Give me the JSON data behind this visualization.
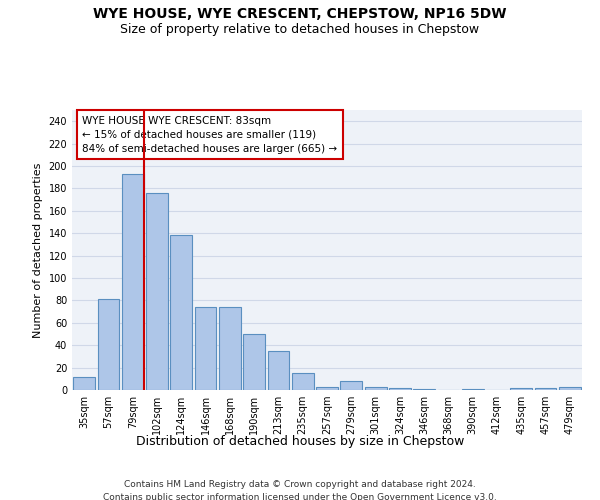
{
  "title": "WYE HOUSE, WYE CRESCENT, CHEPSTOW, NP16 5DW",
  "subtitle": "Size of property relative to detached houses in Chepstow",
  "xlabel": "Distribution of detached houses by size in Chepstow",
  "ylabel": "Number of detached properties",
  "categories": [
    "35sqm",
    "57sqm",
    "79sqm",
    "102sqm",
    "124sqm",
    "146sqm",
    "168sqm",
    "190sqm",
    "213sqm",
    "235sqm",
    "257sqm",
    "279sqm",
    "301sqm",
    "324sqm",
    "346sqm",
    "368sqm",
    "390sqm",
    "412sqm",
    "435sqm",
    "457sqm",
    "479sqm"
  ],
  "values": [
    12,
    81,
    193,
    176,
    138,
    74,
    74,
    50,
    35,
    15,
    3,
    8,
    3,
    2,
    1,
    0,
    1,
    0,
    2,
    2,
    3
  ],
  "bar_color": "#aec6e8",
  "bar_edge_color": "#5a8fc0",
  "annotation_line1": "WYE HOUSE WYE CRESCENT: 83sqm",
  "annotation_line2": "← 15% of detached houses are smaller (119)",
  "annotation_line3": "84% of semi-detached houses are larger (665) →",
  "annotation_box_color": "#ffffff",
  "annotation_box_edge_color": "#cc0000",
  "vline_color": "#cc0000",
  "vline_x_index": 2,
  "ylim": [
    0,
    250
  ],
  "yticks": [
    0,
    20,
    40,
    60,
    80,
    100,
    120,
    140,
    160,
    180,
    200,
    220,
    240
  ],
  "grid_color": "#d0d8e8",
  "background_color": "#eef2f8",
  "footer_line1": "Contains HM Land Registry data © Crown copyright and database right 2024.",
  "footer_line2": "Contains public sector information licensed under the Open Government Licence v3.0.",
  "title_fontsize": 10,
  "subtitle_fontsize": 9,
  "xlabel_fontsize": 9,
  "ylabel_fontsize": 8,
  "tick_fontsize": 7,
  "annotation_fontsize": 7.5,
  "footer_fontsize": 6.5
}
